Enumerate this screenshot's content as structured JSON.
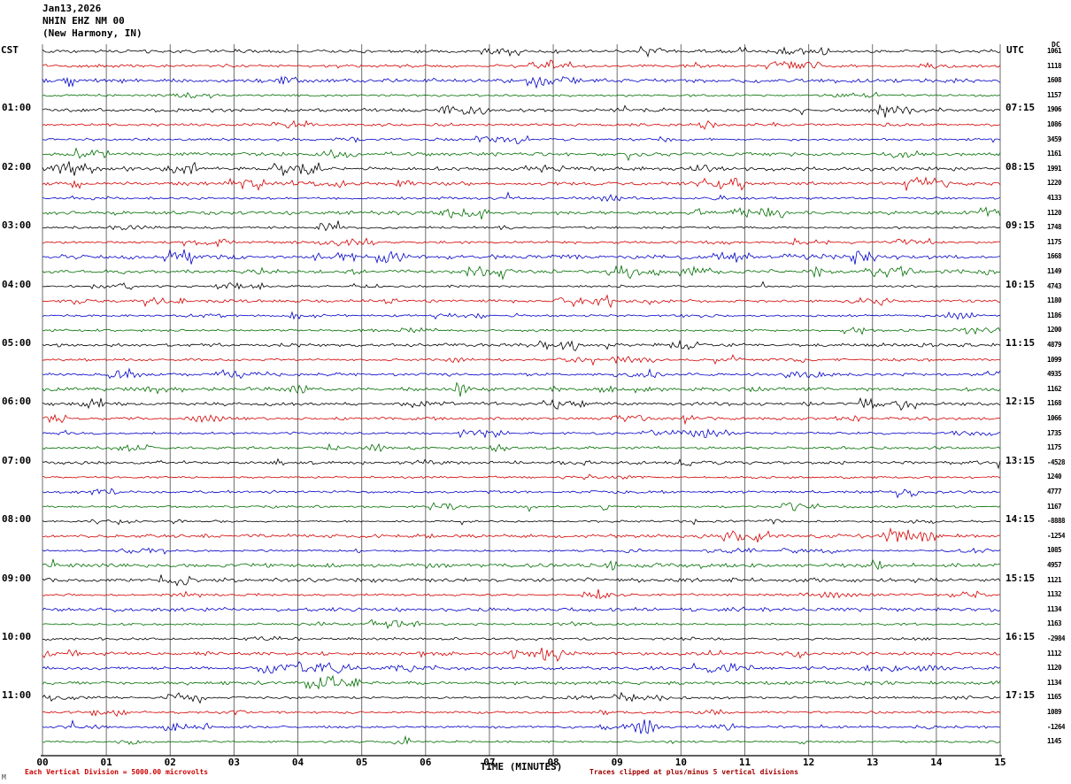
{
  "header": {
    "date": "Jan13,2026",
    "station": "NHIN EHZ NM 00",
    "location": "(New Harmony, IN)"
  },
  "axis": {
    "left_tz": "CST",
    "right_tz": "UTC",
    "dc_label": "DC",
    "xlabel": "TIME (MINUTES)",
    "x_ticks": [
      "00",
      "01",
      "02",
      "03",
      "04",
      "05",
      "06",
      "07",
      "08",
      "09",
      "10",
      "11",
      "12",
      "13",
      "14",
      "15"
    ]
  },
  "footer": {
    "scale_note": "Each Vertical Division = 5000.00 microvolts",
    "clip_note": "Traces clipped at plus/minus 5 vertical divisions",
    "watermark": "M"
  },
  "chart_data": {
    "type": "line",
    "subtype": "helicorder-seismogram",
    "minutes_per_line": 15,
    "x_range": [
      0,
      15
    ],
    "grid": true,
    "trace_colors": {
      "black": "#000000",
      "red": "#d40000",
      "blue": "#0000c8",
      "green": "#006e00"
    },
    "rows": [
      {
        "color": "black",
        "cst": "",
        "utc": "",
        "dc": 1061
      },
      {
        "color": "red",
        "cst": "",
        "utc": "",
        "dc": 1118
      },
      {
        "color": "blue",
        "cst": "",
        "utc": "",
        "dc": 1608
      },
      {
        "color": "green",
        "cst": "",
        "utc": "",
        "dc": 1157
      },
      {
        "color": "black",
        "cst": "01:00",
        "utc": "07:15",
        "dc": 1906
      },
      {
        "color": "red",
        "cst": "",
        "utc": "",
        "dc": 1086
      },
      {
        "color": "blue",
        "cst": "",
        "utc": "",
        "dc": 3459
      },
      {
        "color": "green",
        "cst": "",
        "utc": "",
        "dc": 1161
      },
      {
        "color": "black",
        "cst": "02:00",
        "utc": "08:15",
        "dc": 1991
      },
      {
        "color": "red",
        "cst": "",
        "utc": "",
        "dc": 1220
      },
      {
        "color": "blue",
        "cst": "",
        "utc": "",
        "dc": 4133
      },
      {
        "color": "green",
        "cst": "",
        "utc": "",
        "dc": 1120
      },
      {
        "color": "black",
        "cst": "03:00",
        "utc": "09:15",
        "dc": 1748
      },
      {
        "color": "red",
        "cst": "",
        "utc": "",
        "dc": 1175
      },
      {
        "color": "blue",
        "cst": "",
        "utc": "",
        "dc": 1668
      },
      {
        "color": "green",
        "cst": "",
        "utc": "",
        "dc": 1149
      },
      {
        "color": "black",
        "cst": "04:00",
        "utc": "10:15",
        "dc": 4743
      },
      {
        "color": "red",
        "cst": "",
        "utc": "",
        "dc": 1180
      },
      {
        "color": "blue",
        "cst": "",
        "utc": "",
        "dc": 1186
      },
      {
        "color": "green",
        "cst": "",
        "utc": "",
        "dc": 1200
      },
      {
        "color": "black",
        "cst": "05:00",
        "utc": "11:15",
        "dc": 4879
      },
      {
        "color": "red",
        "cst": "",
        "utc": "",
        "dc": 1099
      },
      {
        "color": "blue",
        "cst": "",
        "utc": "",
        "dc": 4935
      },
      {
        "color": "green",
        "cst": "",
        "utc": "",
        "dc": 1162
      },
      {
        "color": "black",
        "cst": "06:00",
        "utc": "12:15",
        "dc": 1168
      },
      {
        "color": "red",
        "cst": "",
        "utc": "",
        "dc": 1066
      },
      {
        "color": "blue",
        "cst": "",
        "utc": "",
        "dc": 1735
      },
      {
        "color": "green",
        "cst": "",
        "utc": "",
        "dc": 1175
      },
      {
        "color": "black",
        "cst": "07:00",
        "utc": "13:15",
        "dc": -4528
      },
      {
        "color": "red",
        "cst": "",
        "utc": "",
        "dc": 1240
      },
      {
        "color": "blue",
        "cst": "",
        "utc": "",
        "dc": 4777
      },
      {
        "color": "green",
        "cst": "",
        "utc": "",
        "dc": 1167
      },
      {
        "color": "black",
        "cst": "08:00",
        "utc": "14:15",
        "dc": -8888
      },
      {
        "color": "red",
        "cst": "",
        "utc": "",
        "dc": -1254
      },
      {
        "color": "blue",
        "cst": "",
        "utc": "",
        "dc": 1085
      },
      {
        "color": "green",
        "cst": "",
        "utc": "",
        "dc": 4957
      },
      {
        "color": "black",
        "cst": "09:00",
        "utc": "15:15",
        "dc": 1121
      },
      {
        "color": "red",
        "cst": "",
        "utc": "",
        "dc": 1132
      },
      {
        "color": "blue",
        "cst": "",
        "utc": "",
        "dc": 1134
      },
      {
        "color": "green",
        "cst": "",
        "utc": "",
        "dc": 1163
      },
      {
        "color": "black",
        "cst": "10:00",
        "utc": "16:15",
        "dc": -2984
      },
      {
        "color": "red",
        "cst": "",
        "utc": "",
        "dc": 1112
      },
      {
        "color": "blue",
        "cst": "",
        "utc": "",
        "dc": 1120
      },
      {
        "color": "green",
        "cst": "",
        "utc": "",
        "dc": 1134
      },
      {
        "color": "black",
        "cst": "11:00",
        "utc": "17:15",
        "dc": 1165
      },
      {
        "color": "red",
        "cst": "",
        "utc": "",
        "dc": 1089
      },
      {
        "color": "blue",
        "cst": "",
        "utc": "",
        "dc": -1264
      },
      {
        "color": "green",
        "cst": "",
        "utc": "",
        "dc": 1145
      }
    ],
    "events": [
      {
        "row": 10,
        "minute": 8.9,
        "amp": 3,
        "width": 0.3
      },
      {
        "row": 15,
        "minute": 9.1,
        "amp": 5,
        "width": 0.1
      },
      {
        "row": 18,
        "minute": 14.35,
        "amp": 3.5,
        "width": 0.3
      },
      {
        "row": 21,
        "minute": 6.5,
        "amp": 3,
        "width": 0.2
      },
      {
        "row": 23,
        "minute": 6.55,
        "amp": 9,
        "width": 0.12
      },
      {
        "row": 25,
        "minute": 2.6,
        "amp": 4.5,
        "width": 0.3
      },
      {
        "row": 26,
        "minute": 10.3,
        "amp": 3.5,
        "width": 0.4
      },
      {
        "row": 27,
        "minute": 5.2,
        "amp": 4.5,
        "width": 0.2
      },
      {
        "row": 35,
        "minute": 8.9,
        "amp": 5.5,
        "width": 0.1
      },
      {
        "row": 37,
        "minute": 12.4,
        "amp": 3,
        "width": 0.5
      },
      {
        "row": 42,
        "minute": 13.9,
        "amp": 3.5,
        "width": 0.25
      },
      {
        "row": 46,
        "minute": 9.45,
        "amp": 10,
        "width": 0.16
      }
    ]
  }
}
